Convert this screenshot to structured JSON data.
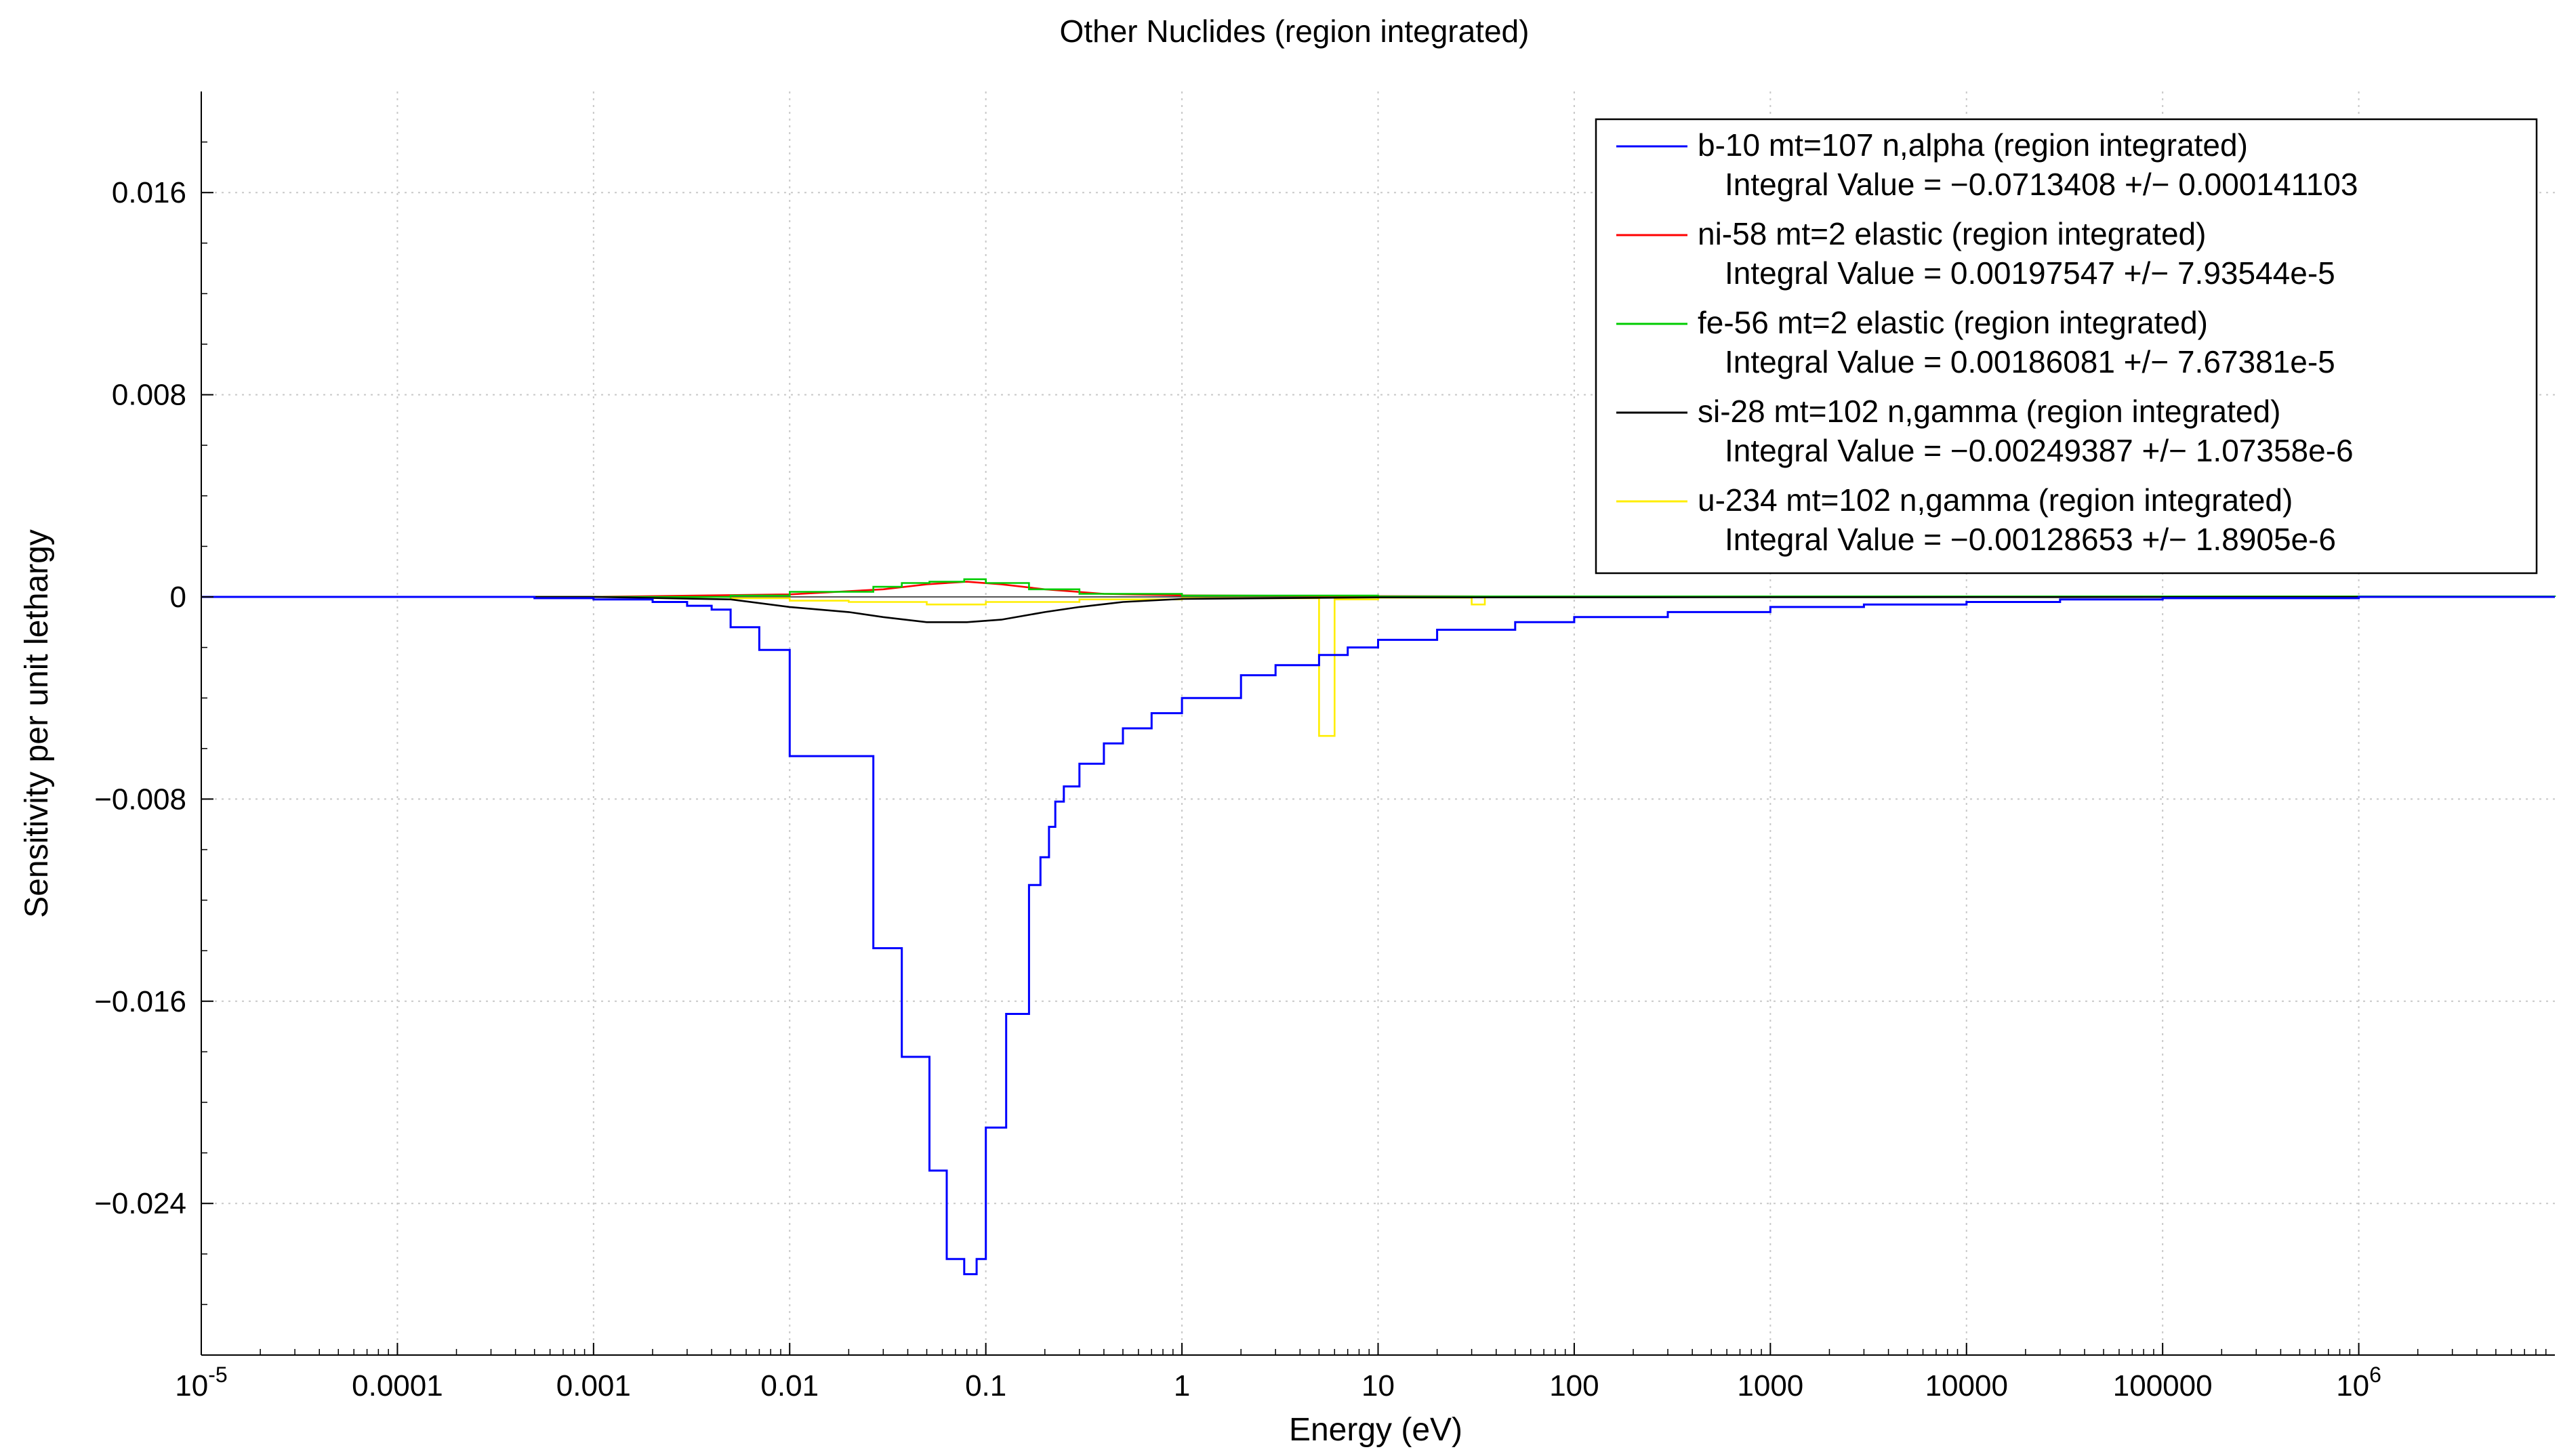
{
  "chart_data": {
    "type": "line",
    "title": "Other Nuclides (region integrated)",
    "xlabel": "Energy (eV)",
    "ylabel": "Sensitivity per unit lethargy",
    "x_scale": "log",
    "xlim": [
      1e-05,
      10000000.0
    ],
    "ylim": [
      -0.03,
      0.02
    ],
    "grid": true,
    "legend_position": "top-right",
    "x_ticks": [
      {
        "value": 1e-05,
        "base": "10",
        "exp": "-5"
      },
      {
        "value": 0.0001,
        "label": "0.0001"
      },
      {
        "value": 0.001,
        "label": "0.001"
      },
      {
        "value": 0.01,
        "label": "0.01"
      },
      {
        "value": 0.1,
        "label": "0.1"
      },
      {
        "value": 1,
        "label": "1"
      },
      {
        "value": 10,
        "label": "10"
      },
      {
        "value": 100,
        "label": "100"
      },
      {
        "value": 1000,
        "label": "1000"
      },
      {
        "value": 10000,
        "label": "10000"
      },
      {
        "value": 100000,
        "label": "100000"
      },
      {
        "value": 1000000,
        "base": "10",
        "exp": "6"
      }
    ],
    "y_ticks": [
      {
        "value": 0.016,
        "label": "0.016"
      },
      {
        "value": 0.008,
        "label": "0.008"
      },
      {
        "value": 0,
        "label": "0"
      },
      {
        "value": -0.008,
        "label": "−0.008"
      },
      {
        "value": -0.016,
        "label": "−0.016"
      },
      {
        "value": -0.024,
        "label": "−0.024"
      }
    ],
    "series": [
      {
        "name": "b-10 mt=107 n,alpha (region integrated)",
        "integral": "Integral Value = −0.0713408 +/− 0.000141103",
        "color": "#0000ff",
        "step": true,
        "x": [
          1e-05,
          0.0001,
          0.0005,
          0.001,
          0.002,
          0.003,
          0.004,
          0.005,
          0.007,
          0.01,
          0.0267,
          0.0373,
          0.0516,
          0.0632,
          0.0776,
          0.0898,
          0.1,
          0.127,
          0.166,
          0.19,
          0.21,
          0.226,
          0.25,
          0.3,
          0.4,
          0.5,
          0.7,
          1,
          2,
          3,
          5,
          7,
          10,
          20,
          50,
          100,
          300,
          1000,
          3000,
          10000,
          30000,
          100000,
          1000000,
          10000000
        ],
        "y": [
          0,
          0,
          -5e-05,
          -0.0001,
          -0.0002,
          -0.00035,
          -0.0005,
          -0.0012,
          -0.0021,
          -0.0063,
          -0.0139,
          -0.0182,
          -0.0227,
          -0.0262,
          -0.0268,
          -0.0262,
          -0.021,
          -0.0165,
          -0.0114,
          -0.0103,
          -0.0091,
          -0.0081,
          -0.0075,
          -0.0066,
          -0.0058,
          -0.0052,
          -0.0046,
          -0.004,
          -0.0031,
          -0.0027,
          -0.0023,
          -0.002,
          -0.0017,
          -0.0013,
          -0.001,
          -0.0008,
          -0.0006,
          -0.0004,
          -0.0003,
          -0.0002,
          -0.0001,
          -5e-05,
          0,
          0
        ]
      },
      {
        "name": "ni-58 mt=2 elastic (region integrated)",
        "integral": "Integral Value = 0.00197547 +/− 7.93544e-5",
        "color": "#ff0000",
        "step": false,
        "x": [
          1e-05,
          0.001,
          0.01,
          0.03,
          0.05,
          0.08,
          0.12,
          0.2,
          0.4,
          1,
          10,
          100,
          10000000
        ],
        "y": [
          0,
          0,
          0.0001,
          0.0003,
          0.0005,
          0.0006,
          0.0005,
          0.0003,
          0.00012,
          6e-05,
          3e-05,
          1e-05,
          0
        ]
      },
      {
        "name": "fe-56 mt=2 elastic (region integrated)",
        "integral": "Integral Value = 0.00186081 +/− 7.67381e-5",
        "color": "#00cc00",
        "step": true,
        "x": [
          1e-05,
          0.001,
          0.005,
          0.01,
          0.0267,
          0.0373,
          0.0516,
          0.0776,
          0.1,
          0.166,
          0.3,
          1,
          10,
          10000000
        ],
        "y": [
          0,
          0,
          5e-05,
          0.0002,
          0.0004,
          0.00055,
          0.0006,
          0.0007,
          0.00055,
          0.0003,
          0.00012,
          5e-05,
          2e-05,
          0
        ]
      },
      {
        "name": "si-28 mt=102 n,gamma (region integrated)",
        "integral": "Integral Value = −0.00249387 +/− 1.07358e-6",
        "color": "#000000",
        "step": false,
        "x": [
          1e-05,
          0.001,
          0.005,
          0.01,
          0.02,
          0.03,
          0.05,
          0.08,
          0.12,
          0.2,
          0.3,
          0.5,
          1,
          10,
          10000000
        ],
        "y": [
          0,
          0,
          -0.0001,
          -0.0004,
          -0.0006,
          -0.0008,
          -0.001,
          -0.001,
          -0.0009,
          -0.0006,
          -0.0004,
          -0.0002,
          -8e-05,
          -2e-05,
          0
        ]
      },
      {
        "name": "u-234 mt=102 n,gamma (region integrated)",
        "integral": "Integral Value = −0.00128653 +/− 1.8905e-6",
        "color": "#ffee00",
        "step": true,
        "x": [
          1e-05,
          0.001,
          0.005,
          0.01,
          0.02,
          0.05,
          0.1,
          0.3,
          1,
          5.0,
          5.5,
          6.0,
          10,
          30,
          35,
          100,
          10000000
        ],
        "y": [
          0,
          0,
          -5e-05,
          -0.00015,
          -0.0002,
          -0.0003,
          -0.0002,
          -0.0001,
          -5e-05,
          -0.0055,
          -0.0055,
          -0.0001,
          -3e-05,
          -0.0003,
          -2e-05,
          0,
          0
        ]
      }
    ]
  }
}
